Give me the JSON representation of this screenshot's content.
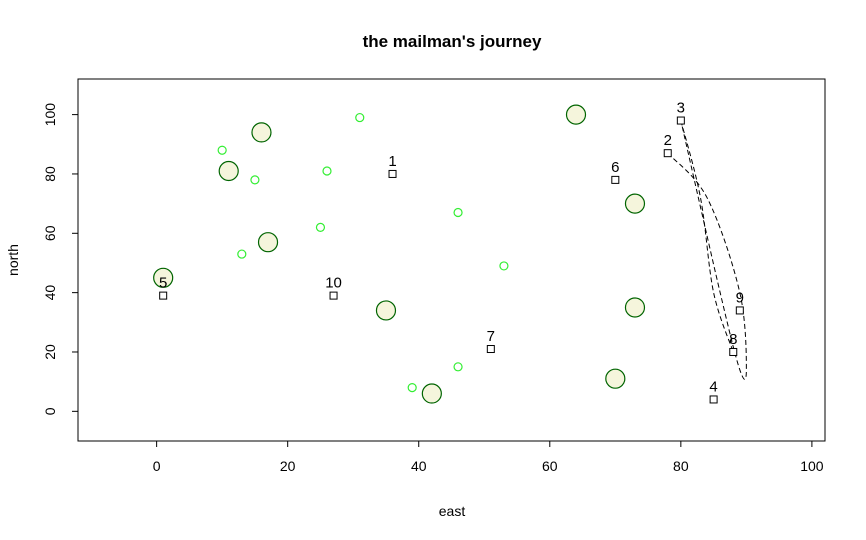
{
  "chart_data": {
    "type": "scatter",
    "title": "the mailman's journey",
    "xlabel": "east",
    "ylabel": "north",
    "xlim": [
      -12,
      102
    ],
    "ylim": [
      -10,
      112
    ],
    "xticks": [
      0,
      20,
      40,
      60,
      80,
      100
    ],
    "yticks": [
      0,
      20,
      40,
      60,
      80,
      100
    ],
    "grid": false,
    "colors": {
      "small_circle": "#33ee33",
      "large_circle_stroke": "#006400",
      "large_circle_fill": "#f5f5dc",
      "stop_marker": "#000000",
      "path": "#000000"
    },
    "small_circles": [
      {
        "x": 10,
        "y": 88
      },
      {
        "x": 15,
        "y": 78
      },
      {
        "x": 13,
        "y": 53
      },
      {
        "x": 25,
        "y": 62
      },
      {
        "x": 26,
        "y": 81
      },
      {
        "x": 31,
        "y": 99
      },
      {
        "x": 46,
        "y": 67
      },
      {
        "x": 53,
        "y": 49
      },
      {
        "x": 46,
        "y": 15
      },
      {
        "x": 39,
        "y": 8
      }
    ],
    "large_circles": [
      {
        "x": 16,
        "y": 94
      },
      {
        "x": 11,
        "y": 81
      },
      {
        "x": 17,
        "y": 57
      },
      {
        "x": 1,
        "y": 45
      },
      {
        "x": 35,
        "y": 34
      },
      {
        "x": 42,
        "y": 6
      },
      {
        "x": 64,
        "y": 100
      },
      {
        "x": 73,
        "y": 70
      },
      {
        "x": 73,
        "y": 35
      },
      {
        "x": 70,
        "y": 11
      }
    ],
    "stops": [
      {
        "label": "1",
        "x": 36,
        "y": 80
      },
      {
        "label": "2",
        "x": 78,
        "y": 87
      },
      {
        "label": "3",
        "x": 80,
        "y": 98
      },
      {
        "label": "4",
        "x": 85,
        "y": 4
      },
      {
        "label": "5",
        "x": 1,
        "y": 39
      },
      {
        "label": "6",
        "x": 70,
        "y": 78
      },
      {
        "label": "7",
        "x": 51,
        "y": 21
      },
      {
        "label": "8",
        "x": 88,
        "y": 20
      },
      {
        "label": "9",
        "x": 89,
        "y": 34
      },
      {
        "label": "10",
        "x": 27,
        "y": 39
      }
    ],
    "path_curves": [
      {
        "from": "2",
        "through": [
          [
            84,
            72
          ],
          [
            89,
            40
          ],
          [
            90,
            14
          ],
          [
            89,
            14
          ],
          [
            86,
            40
          ]
        ],
        "to": "3"
      },
      {
        "from": "3",
        "through": [
          [
            83,
            72
          ],
          [
            85,
            40
          ]
        ],
        "to": "8"
      }
    ]
  }
}
